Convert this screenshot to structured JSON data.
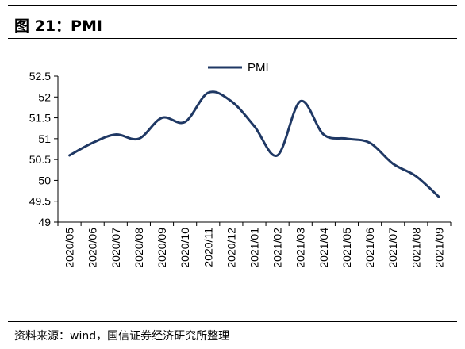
{
  "header": {
    "title": "图 21：PMI"
  },
  "footer": {
    "source": "资料来源：wind，国信证券经济研究所整理"
  },
  "chart_data": {
    "type": "line",
    "title": "",
    "xlabel": "",
    "ylabel": "",
    "categories": [
      "2020/05",
      "2020/06",
      "2020/07",
      "2020/08",
      "2020/09",
      "2020/10",
      "2020/11",
      "2020/12",
      "2021/01",
      "2021/02",
      "2021/03",
      "2021/04",
      "2021/05",
      "2021/06",
      "2021/07",
      "2021/08",
      "2021/09"
    ],
    "series": [
      {
        "name": "PMI",
        "color": "#1f3864",
        "values": [
          50.6,
          50.9,
          51.1,
          51.0,
          51.5,
          51.4,
          52.1,
          51.9,
          51.3,
          50.6,
          51.9,
          51.1,
          51.0,
          50.9,
          50.4,
          50.1,
          49.6
        ]
      }
    ],
    "ylim": [
      49,
      52.5
    ],
    "yticks": [
      "49",
      "49.5",
      "50",
      "50.5",
      "51",
      "51.5",
      "52",
      "52.5"
    ],
    "grid": false,
    "legend_position": "top-center",
    "line_style": "smooth"
  }
}
